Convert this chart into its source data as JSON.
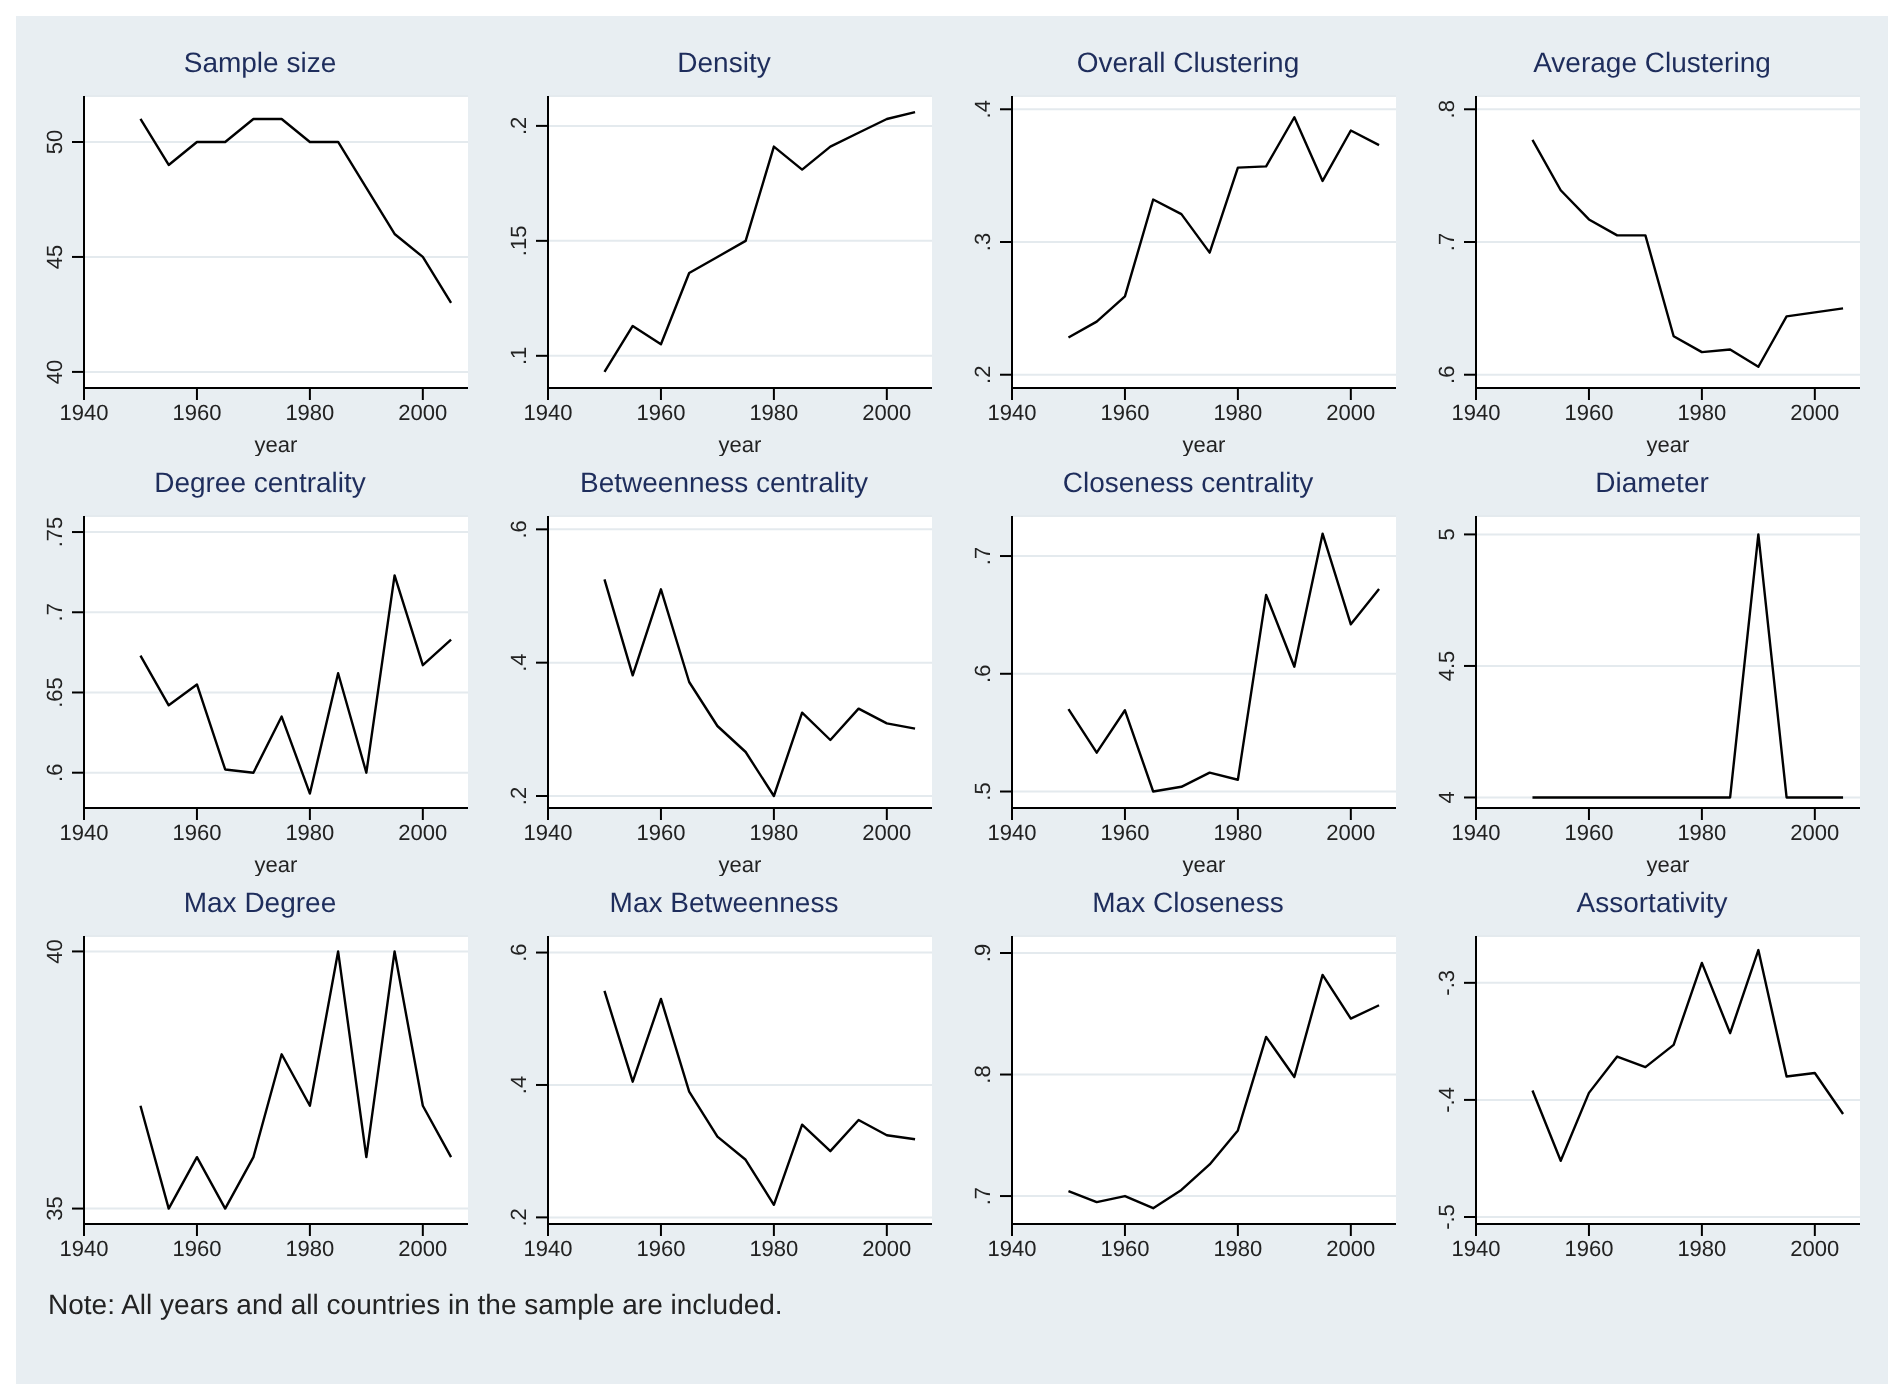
{
  "chart_data": [
    {
      "type": "line",
      "title": "Sample size",
      "xlabel": "year",
      "x": [
        1950,
        1955,
        1960,
        1965,
        1970,
        1975,
        1980,
        1985,
        1990,
        1995,
        2000,
        2005
      ],
      "values": [
        51,
        49,
        50,
        50,
        51,
        51,
        50,
        50,
        48,
        46,
        45,
        43
      ],
      "color": "#000000",
      "xlim": [
        1940,
        2008
      ],
      "xticks": [
        1940,
        1960,
        1980,
        2000
      ],
      "ylim": [
        39.3,
        52
      ],
      "yticks": [
        40,
        45,
        50
      ],
      "grid": "y"
    },
    {
      "type": "line",
      "title": "Density",
      "xlabel": "year",
      "x": [
        1950,
        1955,
        1960,
        1965,
        1970,
        1975,
        1980,
        1985,
        1990,
        1995,
        2000,
        2005
      ],
      "values": [
        0.093,
        0.113,
        0.105,
        0.136,
        0.143,
        0.15,
        0.191,
        0.181,
        0.191,
        0.197,
        0.203,
        0.206
      ],
      "color": "#000000",
      "xlim": [
        1940,
        2008
      ],
      "xticks": [
        1940,
        1960,
        1980,
        2000
      ],
      "ylim": [
        0.086,
        0.213
      ],
      "yticks": [
        {
          "value": 0.1,
          "label": ".1"
        },
        {
          "value": 0.15,
          "label": ".15"
        },
        {
          "value": 0.2,
          "label": ".2"
        }
      ],
      "grid": "y"
    },
    {
      "type": "line",
      "title": "Overall Clustering",
      "xlabel": "year",
      "x": [
        1950,
        1955,
        1960,
        1965,
        1970,
        1975,
        1980,
        1985,
        1990,
        1995,
        2000,
        2005
      ],
      "values": [
        0.228,
        0.24,
        0.259,
        0.332,
        0.321,
        0.292,
        0.356,
        0.357,
        0.394,
        0.346,
        0.384,
        0.373
      ],
      "color": "#000000",
      "xlim": [
        1940,
        2008
      ],
      "xticks": [
        1940,
        1960,
        1980,
        2000
      ],
      "ylim": [
        0.19,
        0.41
      ],
      "yticks": [
        {
          "value": 0.2,
          "label": ".2"
        },
        {
          "value": 0.3,
          "label": ".3"
        },
        {
          "value": 0.4,
          "label": ".4"
        }
      ],
      "grid": "y"
    },
    {
      "type": "line",
      "title": "Average Clustering",
      "xlabel": "year",
      "x": [
        1950,
        1955,
        1960,
        1965,
        1970,
        1975,
        1980,
        1985,
        1990,
        1995,
        2000,
        2005
      ],
      "values": [
        0.777,
        0.739,
        0.717,
        0.705,
        0.705,
        0.629,
        0.617,
        0.619,
        0.606,
        0.644,
        0.647,
        0.65
      ],
      "color": "#000000",
      "xlim": [
        1940,
        2008
      ],
      "xticks": [
        1940,
        1960,
        1980,
        2000
      ],
      "ylim": [
        0.59,
        0.81
      ],
      "yticks": [
        {
          "value": 0.6,
          "label": ".6"
        },
        {
          "value": 0.7,
          "label": ".7"
        },
        {
          "value": 0.8,
          "label": ".8"
        }
      ],
      "grid": "y"
    },
    {
      "type": "line",
      "title": "Degree centrality",
      "xlabel": "year",
      "x": [
        1950,
        1955,
        1960,
        1965,
        1970,
        1975,
        1980,
        1985,
        1990,
        1995,
        2000,
        2005
      ],
      "values": [
        0.673,
        0.642,
        0.655,
        0.602,
        0.6,
        0.635,
        0.587,
        0.662,
        0.6,
        0.723,
        0.667,
        0.683
      ],
      "color": "#000000",
      "xlim": [
        1940,
        2008
      ],
      "xticks": [
        1940,
        1960,
        1980,
        2000
      ],
      "ylim": [
        0.578,
        0.76
      ],
      "yticks": [
        {
          "value": 0.6,
          "label": ".6"
        },
        {
          "value": 0.65,
          "label": ".65"
        },
        {
          "value": 0.7,
          "label": ".7"
        },
        {
          "value": 0.75,
          "label": ".75"
        }
      ],
      "grid": "y"
    },
    {
      "type": "line",
      "title": "Betweenness centrality",
      "xlabel": "year",
      "x": [
        1950,
        1955,
        1960,
        1965,
        1970,
        1975,
        1980,
        1985,
        1990,
        1995,
        2000,
        2005
      ],
      "values": [
        0.525,
        0.381,
        0.51,
        0.371,
        0.305,
        0.266,
        0.2,
        0.325,
        0.284,
        0.331,
        0.309,
        0.301
      ],
      "color": "#000000",
      "xlim": [
        1940,
        2008
      ],
      "xticks": [
        1940,
        1960,
        1980,
        2000
      ],
      "ylim": [
        0.182,
        0.62
      ],
      "yticks": [
        {
          "value": 0.2,
          "label": ".2"
        },
        {
          "value": 0.4,
          "label": ".4"
        },
        {
          "value": 0.6,
          "label": ".6"
        }
      ],
      "grid": "y"
    },
    {
      "type": "line",
      "title": "Closeness centrality",
      "xlabel": "year",
      "x": [
        1950,
        1955,
        1960,
        1965,
        1970,
        1975,
        1980,
        1985,
        1990,
        1995,
        2000,
        2005
      ],
      "values": [
        0.57,
        0.533,
        0.569,
        0.5,
        0.504,
        0.516,
        0.51,
        0.667,
        0.606,
        0.719,
        0.642,
        0.672
      ],
      "color": "#000000",
      "xlim": [
        1940,
        2008
      ],
      "xticks": [
        1940,
        1960,
        1980,
        2000
      ],
      "ylim": [
        0.486,
        0.734
      ],
      "yticks": [
        {
          "value": 0.5,
          "label": ".5"
        },
        {
          "value": 0.6,
          "label": ".6"
        },
        {
          "value": 0.7,
          "label": ".7"
        }
      ],
      "grid": "y"
    },
    {
      "type": "line",
      "title": "Diameter",
      "xlabel": "year",
      "x": [
        1950,
        1955,
        1960,
        1965,
        1970,
        1975,
        1980,
        1985,
        1990,
        1995,
        2000,
        2005
      ],
      "values": [
        4,
        4,
        4,
        4,
        4,
        4,
        4,
        4,
        5,
        4,
        4,
        4
      ],
      "color": "#000000",
      "xlim": [
        1940,
        2008
      ],
      "xticks": [
        1940,
        1960,
        1980,
        2000
      ],
      "ylim": [
        3.96,
        5.07
      ],
      "yticks": [
        4,
        4.5,
        5
      ],
      "grid": "y"
    },
    {
      "type": "line",
      "title": "Max Degree",
      "x": [
        1950,
        1955,
        1960,
        1965,
        1970,
        1975,
        1980,
        1985,
        1990,
        1995,
        2000,
        2005
      ],
      "values": [
        37,
        35,
        36,
        35,
        36,
        38,
        37,
        40,
        36,
        40,
        37,
        36
      ],
      "color": "#000000",
      "xlim": [
        1940,
        2008
      ],
      "xticks": [
        1940,
        1960,
        1980,
        2000
      ],
      "ylim": [
        34.7,
        40.3
      ],
      "yticks": [
        35,
        40
      ],
      "grid": "y"
    },
    {
      "type": "line",
      "title": "Max Betweenness",
      "x": [
        1950,
        1955,
        1960,
        1965,
        1970,
        1975,
        1980,
        1985,
        1990,
        1995,
        2000,
        2005
      ],
      "values": [
        0.542,
        0.405,
        0.53,
        0.39,
        0.322,
        0.287,
        0.219,
        0.34,
        0.3,
        0.347,
        0.324,
        0.318
      ],
      "color": "#000000",
      "xlim": [
        1940,
        2008
      ],
      "xticks": [
        1940,
        1960,
        1980,
        2000
      ],
      "ylim": [
        0.19,
        0.625
      ],
      "yticks": [
        {
          "value": 0.2,
          "label": ".2"
        },
        {
          "value": 0.4,
          "label": ".4"
        },
        {
          "value": 0.6,
          "label": ".6"
        }
      ],
      "grid": "y"
    },
    {
      "type": "line",
      "title": "Max Closeness",
      "x": [
        1950,
        1955,
        1960,
        1965,
        1970,
        1975,
        1980,
        1985,
        1990,
        1995,
        2000,
        2005
      ],
      "values": [
        0.704,
        0.695,
        0.7,
        0.69,
        0.705,
        0.726,
        0.754,
        0.831,
        0.798,
        0.882,
        0.846,
        0.857
      ],
      "color": "#000000",
      "xlim": [
        1940,
        2008
      ],
      "xticks": [
        1940,
        1960,
        1980,
        2000
      ],
      "ylim": [
        0.677,
        0.914
      ],
      "yticks": [
        {
          "value": 0.7,
          "label": ".7"
        },
        {
          "value": 0.8,
          "label": ".8"
        },
        {
          "value": 0.9,
          "label": ".9"
        }
      ],
      "grid": "y"
    },
    {
      "type": "line",
      "title": "Assortativity",
      "x": [
        1950,
        1955,
        1960,
        1965,
        1970,
        1975,
        1980,
        1985,
        1990,
        1995,
        2000,
        2005
      ],
      "values": [
        -0.392,
        -0.452,
        -0.394,
        -0.363,
        -0.372,
        -0.353,
        -0.283,
        -0.343,
        -0.272,
        -0.38,
        -0.377,
        -0.412
      ],
      "color": "#000000",
      "xlim": [
        1940,
        2008
      ],
      "xticks": [
        1940,
        1960,
        1980,
        2000
      ],
      "ylim": [
        -0.506,
        -0.26
      ],
      "yticks": [
        {
          "value": -0.5,
          "label": "-.5"
        },
        {
          "value": -0.4,
          "label": "-.4"
        },
        {
          "value": -0.3,
          "label": "-.3"
        }
      ],
      "grid": "y",
      "annotations": [
        "Note: All years and all countries in the sample are included."
      ]
    }
  ]
}
